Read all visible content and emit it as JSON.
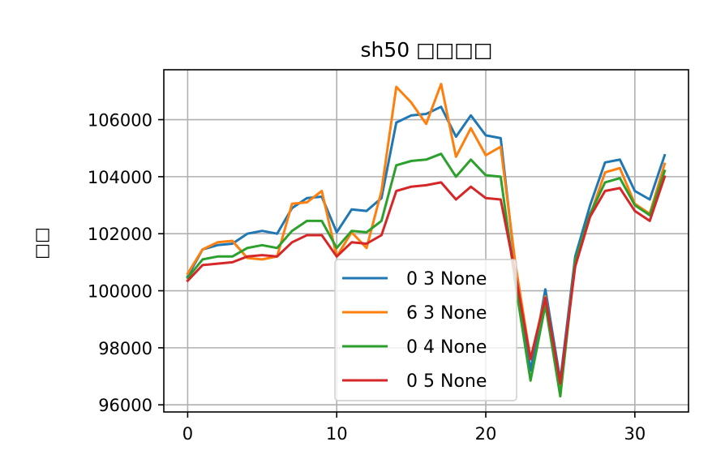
{
  "chart_data": {
    "type": "line",
    "title": "sh50 □□□□",
    "xlabel": "",
    "ylabel": "□□",
    "xlim": [
      -1.6,
      33.6
    ],
    "ylim": [
      95750,
      107750
    ],
    "xticks": [
      0,
      10,
      20,
      30
    ],
    "yticks": [
      96000,
      98000,
      100000,
      102000,
      104000,
      106000
    ],
    "grid": true,
    "legend_position": "lower-center",
    "x": [
      0,
      1,
      2,
      3,
      4,
      5,
      6,
      7,
      8,
      9,
      10,
      11,
      12,
      13,
      14,
      15,
      16,
      17,
      18,
      19,
      20,
      21,
      22,
      23,
      24,
      25,
      26,
      27,
      28,
      29,
      30,
      31,
      32
    ],
    "series": [
      {
        "name": "0 3 None",
        "color": "#1f77b4",
        "values": [
          100500,
          101450,
          101600,
          101650,
          102000,
          102100,
          102000,
          102900,
          103250,
          103300,
          102050,
          102850,
          102800,
          103250,
          105900,
          106150,
          106200,
          106450,
          105400,
          106150,
          105450,
          105350,
          100700,
          97200,
          100050,
          96850,
          101200,
          103000,
          104500,
          104600,
          103500,
          103200,
          104750
        ]
      },
      {
        "name": "6 3 None",
        "color": "#ff7f0e",
        "values": [
          100600,
          101450,
          101700,
          101750,
          101150,
          101100,
          101200,
          103050,
          103100,
          103500,
          101200,
          102050,
          101500,
          103500,
          107150,
          106600,
          105850,
          107250,
          104700,
          105700,
          104750,
          105050,
          100900,
          97600,
          99800,
          96600,
          101000,
          102650,
          104150,
          104300,
          103050,
          102700,
          104450
        ]
      },
      {
        "name": "0 4 None",
        "color": "#2ca02c",
        "values": [
          100450,
          101100,
          101200,
          101200,
          101500,
          101600,
          101500,
          102100,
          102450,
          102450,
          101500,
          102100,
          102050,
          102450,
          104400,
          104550,
          104600,
          104800,
          104000,
          104600,
          104050,
          104000,
          100200,
          96850,
          99500,
          96300,
          101050,
          102700,
          103800,
          103950,
          103000,
          102650,
          104200
        ]
      },
      {
        "name": "0 5 None",
        "color": "#d62728",
        "values": [
          100350,
          100900,
          100950,
          101000,
          101200,
          101250,
          101200,
          101700,
          101950,
          101950,
          101200,
          101700,
          101650,
          101950,
          103500,
          103650,
          103700,
          103800,
          103200,
          103650,
          103250,
          103200,
          100550,
          97600,
          99750,
          96750,
          100850,
          102600,
          103500,
          103600,
          102800,
          102450,
          104000
        ]
      }
    ]
  }
}
